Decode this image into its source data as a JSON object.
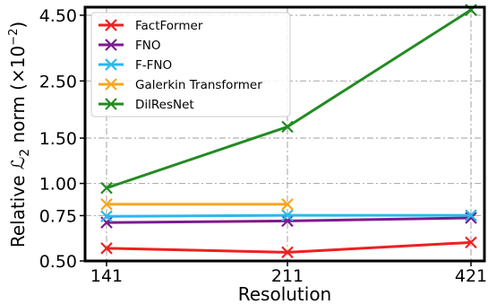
{
  "chart_data": {
    "type": "line",
    "xlabel": "Resolution",
    "ylabel_prefix": "Relative ",
    "ylabel_math": "ℒ",
    "ylabel_sub": "2",
    "ylabel_suffix": " norm (×10",
    "ylabel_exp": "−2",
    "ylabel_close": ")",
    "x": [
      141,
      211,
      421
    ],
    "x_tick_labels": [
      "141",
      "211",
      "421"
    ],
    "y_ticks": [
      0.5,
      0.75,
      1.0,
      1.5,
      2.5,
      4.5
    ],
    "y_tick_labels": [
      "0.50",
      "0.75",
      "1.00",
      "1.50",
      "2.50",
      "4.50"
    ],
    "ylim": [
      0.5,
      4.5
    ],
    "yscale": "log",
    "grid": true,
    "legend_position": "top-left",
    "series": [
      {
        "name": "FactFormer",
        "color": "#ee2020",
        "values": [
          0.56,
          0.54,
          0.59
        ]
      },
      {
        "name": "FNO",
        "color": "#7b1c8e",
        "values": [
          0.705,
          0.715,
          0.735
        ]
      },
      {
        "name": "F-FNO",
        "color": "#2ab8ec",
        "values": [
          0.745,
          0.752,
          0.752
        ]
      },
      {
        "name": "Galerkin Transformer",
        "color": "#f8a621",
        "values": [
          0.83,
          0.83,
          null
        ]
      },
      {
        "name": "DilResNet",
        "color": "#228b22",
        "values": [
          0.96,
          1.66,
          4.72
        ]
      }
    ]
  }
}
